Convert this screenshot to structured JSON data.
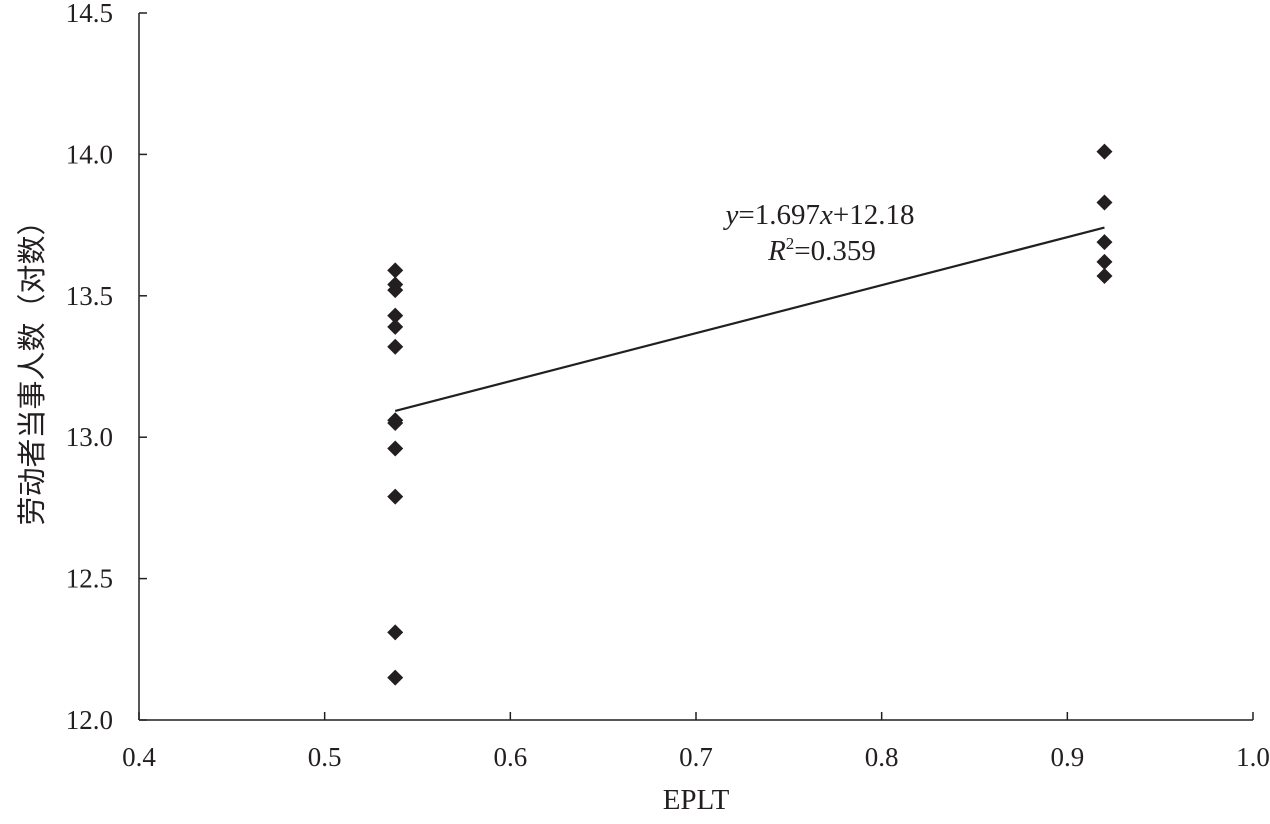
{
  "chart_data": {
    "type": "scatter",
    "title": "",
    "xlabel": "EPLT",
    "ylabel": "劳动者当事人数（对数）",
    "xlim": [
      0.4,
      1.0
    ],
    "ylim": [
      12.0,
      14.5
    ],
    "x_ticks": [
      "0.4",
      "0.5",
      "0.6",
      "0.7",
      "0.8",
      "0.9",
      "1.0"
    ],
    "y_ticks": [
      "12.0",
      "12.5",
      "13.0",
      "13.5",
      "14.0",
      "14.5"
    ],
    "grid": false,
    "legend": "none",
    "marker": "diamond",
    "marker_color": "#231f20",
    "points": [
      {
        "x": 0.538,
        "y": 13.59
      },
      {
        "x": 0.538,
        "y": 13.54
      },
      {
        "x": 0.538,
        "y": 13.52
      },
      {
        "x": 0.538,
        "y": 13.43
      },
      {
        "x": 0.538,
        "y": 13.39
      },
      {
        "x": 0.538,
        "y": 13.32
      },
      {
        "x": 0.538,
        "y": 13.06
      },
      {
        "x": 0.538,
        "y": 13.05
      },
      {
        "x": 0.538,
        "y": 12.96
      },
      {
        "x": 0.538,
        "y": 12.79
      },
      {
        "x": 0.538,
        "y": 12.31
      },
      {
        "x": 0.538,
        "y": 12.15
      },
      {
        "x": 0.92,
        "y": 14.01
      },
      {
        "x": 0.92,
        "y": 13.83
      },
      {
        "x": 0.92,
        "y": 13.69
      },
      {
        "x": 0.92,
        "y": 13.62
      },
      {
        "x": 0.92,
        "y": 13.57
      }
    ],
    "trendline": {
      "type": "linear",
      "slope": 1.697,
      "intercept": 12.18,
      "x_range": [
        0.538,
        0.92
      ],
      "color": "#231f20"
    },
    "annotations": {
      "equation": {
        "y_var": "y",
        "eq_middle": "=1.697",
        "x_var": "x",
        "eq_end": "+12.18"
      },
      "r_squared": {
        "r": "R",
        "sup": "2",
        "value": "=0.359"
      }
    }
  }
}
